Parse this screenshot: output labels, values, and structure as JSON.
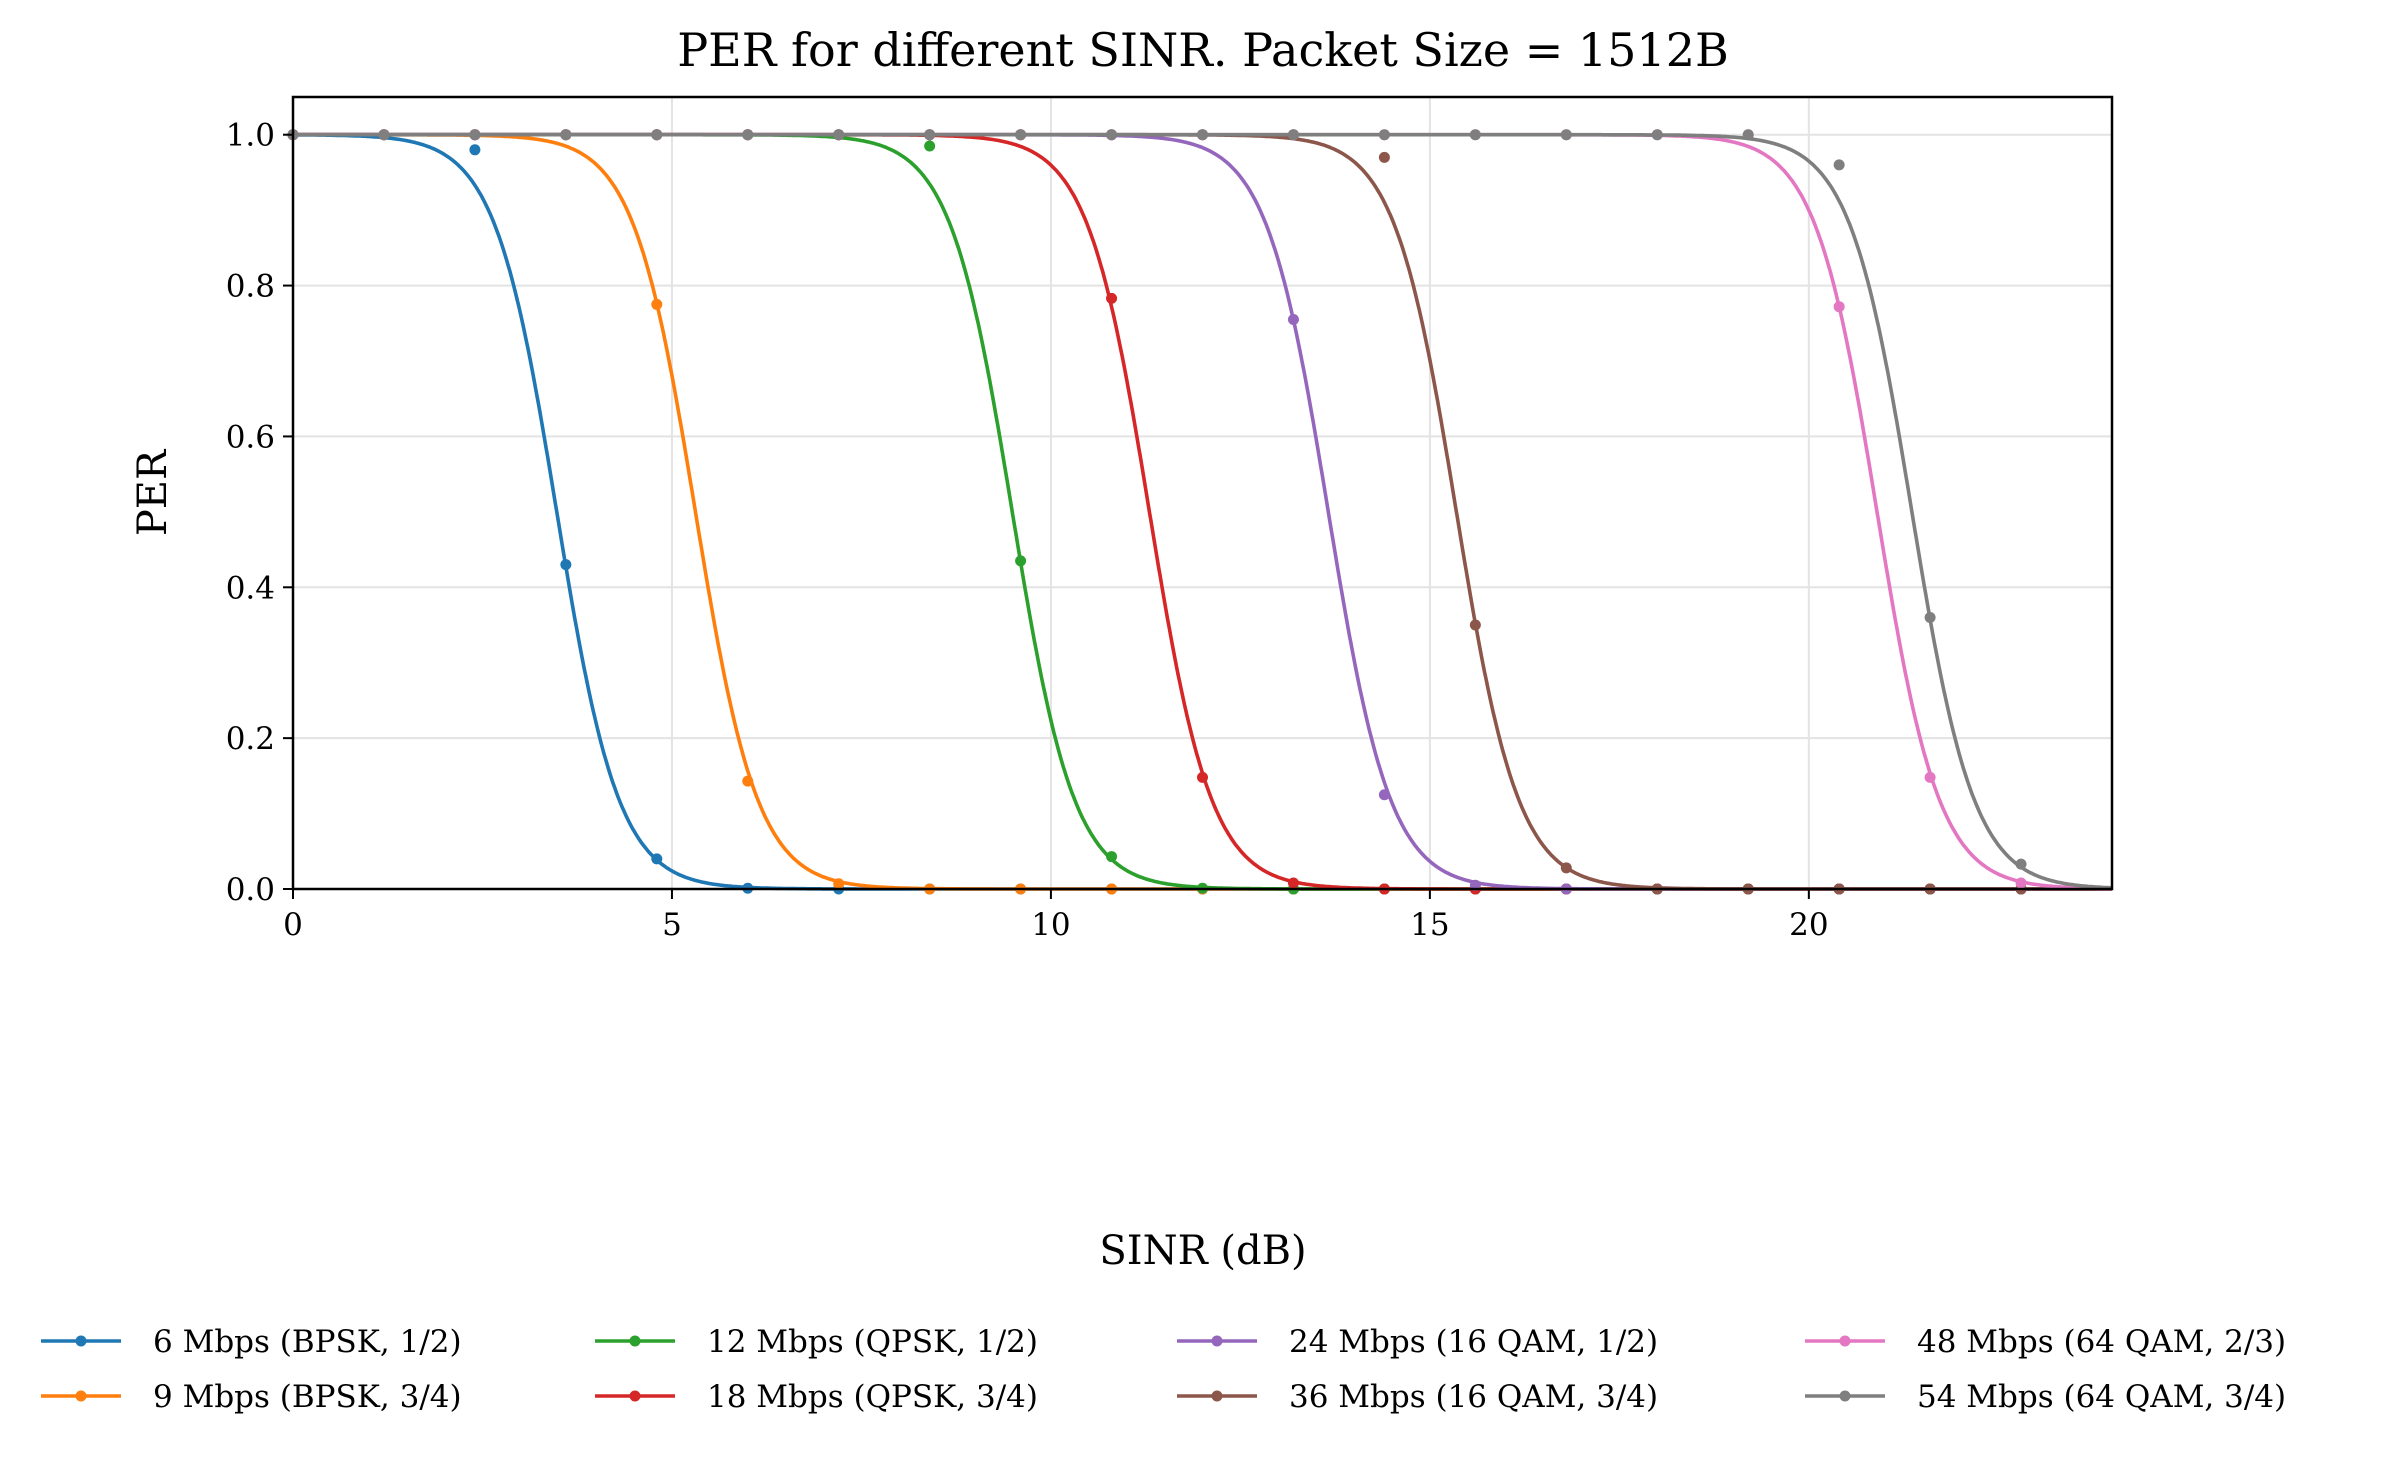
{
  "chart_data": {
    "type": "line",
    "title": "PER for different SINR. Packet Size = 1512B",
    "xlabel": "SINR (dB)",
    "ylabel": "PER",
    "xlim": [
      0,
      24
    ],
    "ylim": [
      0,
      1.05
    ],
    "xticks": [
      0,
      5,
      10,
      15,
      20
    ],
    "xtick_labels": [
      "0",
      "5",
      "10",
      "15",
      "20"
    ],
    "yticks": [
      0,
      0.2,
      0.4,
      0.6,
      0.8,
      1.0
    ],
    "ytick_labels": [
      "0.0",
      "0.2",
      "0.4",
      "0.6",
      "0.8",
      "1.0"
    ],
    "grid": true,
    "legend_placement": "bottom, 4 columns",
    "marker_x": [
      0,
      1.2,
      2.4,
      3.6,
      4.8,
      6.0,
      7.2,
      8.4,
      9.6,
      10.8,
      12.0,
      13.2,
      14.4,
      15.6,
      16.8,
      18.0,
      19.2,
      20.4,
      21.6,
      22.8
    ],
    "series": [
      {
        "name": "6 Mbps (BPSK, 1/2)",
        "color": "#1f77b4",
        "center": 3.48,
        "scale": 0.41,
        "values": [
          1,
          1,
          0.98,
          0.43,
          0.04,
          0.001,
          0,
          0,
          0,
          0,
          0,
          0,
          0,
          0,
          0,
          0,
          0,
          0,
          0,
          0
        ]
      },
      {
        "name": "9 Mbps (BPSK, 3/4)",
        "color": "#ff7f0e",
        "center": 5.31,
        "scale": 0.41,
        "values": [
          1,
          1,
          1,
          1,
          0.775,
          0.143,
          0.007,
          0,
          0,
          0,
          0,
          0,
          0,
          0,
          0,
          0,
          0,
          0,
          0,
          0
        ]
      },
      {
        "name": "12 Mbps (QPSK, 1/2)",
        "color": "#2ca02c",
        "center": 9.49,
        "scale": 0.41,
        "values": [
          1,
          1,
          1,
          1,
          1,
          1,
          1,
          0.985,
          0.435,
          0.043,
          0.001,
          0,
          0,
          0,
          0,
          0,
          0,
          0,
          0,
          0
        ]
      },
      {
        "name": "18 Mbps (QPSK, 3/4)",
        "color": "#d62728",
        "center": 11.3,
        "scale": 0.41,
        "values": [
          1,
          1,
          1,
          1,
          1,
          1,
          1,
          1,
          1,
          0.783,
          0.148,
          0.008,
          0,
          0,
          0,
          0,
          0,
          0,
          0,
          0
        ]
      },
      {
        "name": "24 Mbps (16 QAM, 1/2)",
        "color": "#9467bd",
        "center": 13.66,
        "scale": 0.41,
        "values": [
          1,
          1,
          1,
          1,
          1,
          1,
          1,
          1,
          1,
          1,
          1,
          0.755,
          0.125,
          0.005,
          0,
          0,
          0,
          0,
          0,
          0
        ]
      },
      {
        "name": "36 Mbps (16 QAM, 3/4)",
        "color": "#8c564b",
        "center": 15.35,
        "scale": 0.41,
        "values": [
          1,
          1,
          1,
          1,
          1,
          1,
          1,
          1,
          1,
          1,
          1,
          1,
          0.97,
          0.35,
          0.028,
          0,
          0,
          0,
          0,
          0
        ]
      },
      {
        "name": "48 Mbps (64 QAM, 2/3)",
        "color": "#e377c2",
        "center": 20.9,
        "scale": 0.41,
        "values": [
          1,
          1,
          1,
          1,
          1,
          1,
          1,
          1,
          1,
          1,
          1,
          1,
          1,
          1,
          1,
          1,
          1,
          0.772,
          0.148,
          0.008
        ]
      },
      {
        "name": "54 Mbps (64 QAM, 3/4)",
        "color": "#7f7f7f",
        "center": 21.36,
        "scale": 0.41,
        "values": [
          1,
          1,
          1,
          1,
          1,
          1,
          1,
          1,
          1,
          1,
          1,
          1,
          1,
          1,
          1,
          1,
          1,
          0.96,
          0.36,
          0.033
        ]
      }
    ]
  }
}
